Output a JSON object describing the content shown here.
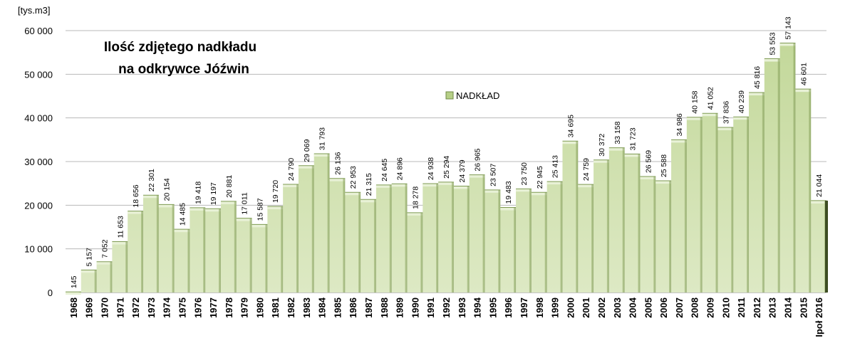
{
  "chart_data": {
    "type": "area",
    "title_lines": [
      "Ilość  zdjętego nadkładu",
      "na odkrywce Jóźwin"
    ],
    "ylabel": "[tys.m3]",
    "ylim": [
      0,
      60000
    ],
    "yticks": [
      0,
      10000,
      20000,
      30000,
      40000,
      50000,
      60000
    ],
    "ytick_labels": [
      "0",
      "10 000",
      "20 000",
      "30 000",
      "40 000",
      "50 000",
      "60 000"
    ],
    "grid": true,
    "legend": {
      "position": "top-center",
      "entries": [
        "NADKŁAD"
      ]
    },
    "categories": [
      "1968",
      "1969",
      "1970",
      "1971",
      "1972",
      "1973",
      "1974",
      "1975",
      "1976",
      "1977",
      "1978",
      "1979",
      "1980",
      "1981",
      "1982",
      "1983",
      "1984",
      "1985",
      "1986",
      "1987",
      "1988",
      "1989",
      "1990",
      "1991",
      "1992",
      "1993",
      "1994",
      "1995",
      "1996",
      "1997",
      "1998",
      "1999",
      "2000",
      "2001",
      "2002",
      "2003",
      "2004",
      "2005",
      "2006",
      "2007",
      "2008",
      "2009",
      "2010",
      "2011",
      "2012",
      "2013",
      "2014",
      "2015",
      "Ipoł 2016"
    ],
    "series": [
      {
        "name": "NADKŁAD",
        "color": "#c8dca0",
        "values": [
          145,
          5157,
          7052,
          11653,
          18656,
          22301,
          20154,
          14485,
          19418,
          19197,
          20881,
          17011,
          15587,
          19720,
          24790,
          29069,
          31793,
          26136,
          22953,
          21315,
          24645,
          24896,
          18278,
          24938,
          25294,
          24379,
          26965,
          23507,
          19483,
          23750,
          22945,
          25413,
          34695,
          24759,
          30372,
          33158,
          31723,
          26569,
          25588,
          34986,
          40158,
          41052,
          37836,
          40239,
          45816,
          53553,
          57143,
          46601,
          21044
        ],
        "labels": [
          "145",
          "5 157",
          "7 052",
          "11 653",
          "18 656",
          "22 301",
          "20 154",
          "14 485",
          "19 418",
          "19 197",
          "20 881",
          "17 011",
          "15 587",
          "19 720",
          "24 790",
          "29 069",
          "31 793",
          "26 136",
          "22 953",
          "21 315",
          "24 645",
          "24 896",
          "18 278",
          "24 938",
          "25 294",
          "24 379",
          "26 965",
          "23 507",
          "19 483",
          "23 750",
          "22 945",
          "25 413",
          "34 695",
          "24 759",
          "30 372",
          "33 158",
          "31 723",
          "26 569",
          "25 588",
          "34 986",
          "40 158",
          "41 052",
          "37 836",
          "40 239",
          "45 816",
          "53 553",
          "57 143",
          "46 601",
          "21 044"
        ]
      }
    ]
  }
}
